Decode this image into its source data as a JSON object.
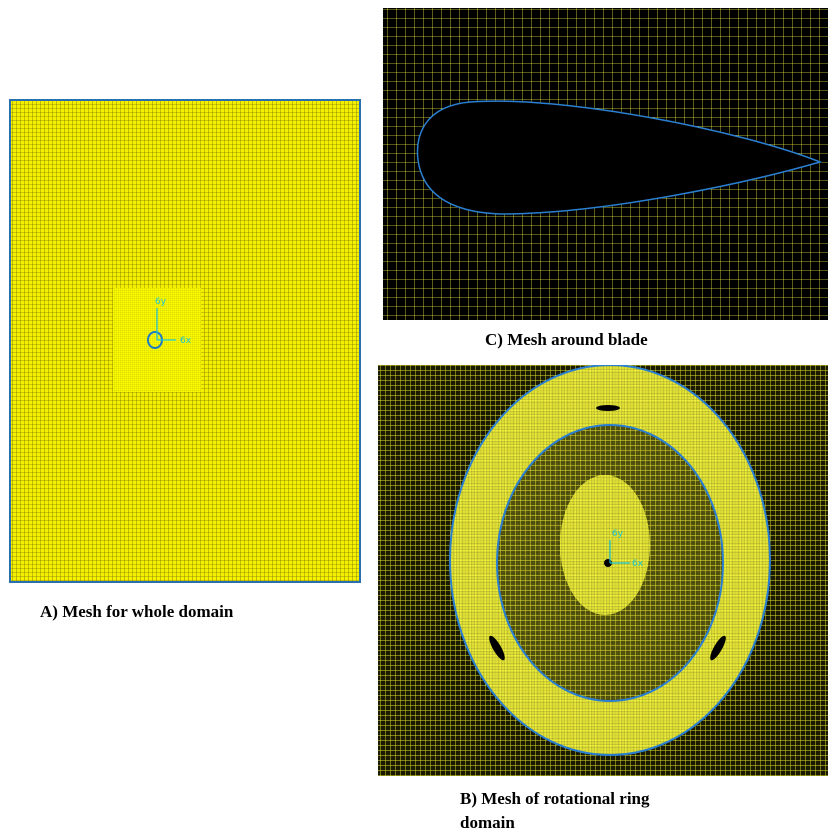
{
  "panels": {
    "a": {
      "caption": "A) Mesh for whole domain",
      "axis_y": "6y",
      "axis_x": "6x"
    },
    "c": {
      "caption": "C) Mesh around blade"
    },
    "b": {
      "caption_lines": [
        "B) Mesh of rotational ring",
        "domain"
      ],
      "axis_y": "6y",
      "axis_x": "6x"
    }
  }
}
